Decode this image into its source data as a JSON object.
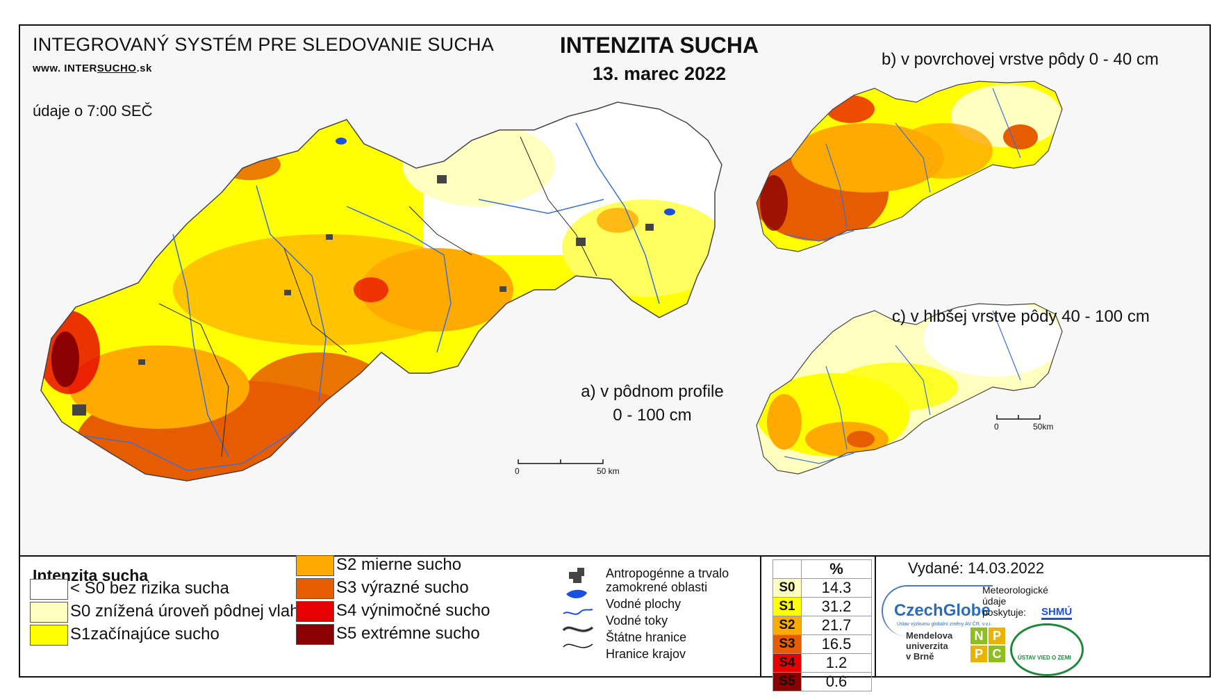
{
  "header": {
    "system_title": "INTEGROVANÝ SYSTÉM PRE SLEDOVANIE SUCHA",
    "website_prefix": "www. INTER",
    "website_underline": "SUCHO",
    "website_suffix": ".sk",
    "observation_time": "údaje o 7:00 SEČ",
    "main_title": "INTENZITA SUCHA",
    "date": "13. marec 2022"
  },
  "maps": {
    "a_label_line1": "a) v pôdnom profile",
    "a_label_line2": "0 - 100 cm",
    "b_label": "b) v povrchovej vrstve pôdy 0 - 40 cm",
    "c_label": "c) v hlbšej vrstve pôdy 40 - 100 cm",
    "scale_main": {
      "zero": "0",
      "end": "50 km"
    },
    "scale_small": {
      "zero": "0",
      "end": "50km"
    }
  },
  "legend": {
    "title": "Intenzita sucha",
    "classes": [
      {
        "label": "< S0 bez rizika sucha",
        "color": "#ffffff"
      },
      {
        "label": "S0 znížená úroveň pôdnej vlahy",
        "color": "#ffffc0"
      },
      {
        "label": "S1začínajúce sucho",
        "color": "#ffff00"
      },
      {
        "label": "S2 mierne sucho",
        "color": "#ffaa00"
      },
      {
        "label": "S3 výrazné sucho",
        "color": "#e65c00"
      },
      {
        "label": "S4 výnimočné sucho",
        "color": "#e60000"
      },
      {
        "label": "S5 extrémne sucho",
        "color": "#8b0000"
      }
    ],
    "symbols": {
      "anthropogenic_line1": "Antropogénne a trvalo",
      "anthropogenic_line2": "zamokrené oblasti",
      "water_bodies": "Vodné plochy",
      "water_courses": "Vodné toky",
      "state_borders": "Štátne hranice",
      "region_borders": "Hranice krajov"
    }
  },
  "stats": {
    "header": "%",
    "rows": [
      {
        "code": "S0",
        "value": "14.3",
        "color": "#ffffc0"
      },
      {
        "code": "S1",
        "value": "31.2",
        "color": "#ffff00"
      },
      {
        "code": "S2",
        "value": "21.7",
        "color": "#ffaa00"
      },
      {
        "code": "S3",
        "value": "16.5",
        "color": "#e65c00"
      },
      {
        "code": "S4",
        "value": "1.2",
        "color": "#e60000"
      },
      {
        "code": "S5",
        "value": "0.6",
        "color": "#8b0000"
      }
    ]
  },
  "footer": {
    "issued": "Vydané: 14.03.2022",
    "czechglobe": "CzechGlobe",
    "czechglobe_sub": "Ústav výzkumu globální změny AV ČR, v.v.i.",
    "meteo_line1": "Meteorologické",
    "meteo_line2": "údaje",
    "meteo_line3": "poskytuje:",
    "shmu": "SHMÚ",
    "mendel_line1": "Mendelova",
    "mendel_line2": "univerzita",
    "mendel_line3": "v Brně",
    "npc": [
      "N",
      "P",
      "P",
      "C"
    ],
    "uvz": "ÚSTAV VIED O ZEMI"
  }
}
